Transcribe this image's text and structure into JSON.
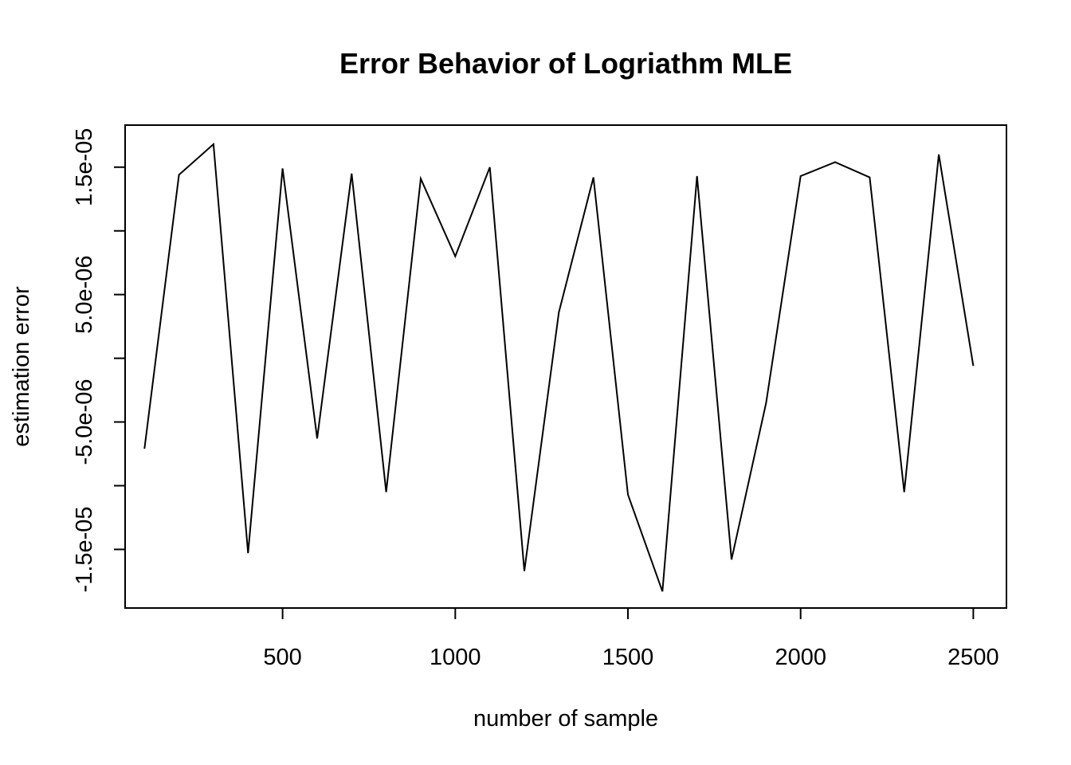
{
  "chart_data": {
    "type": "line",
    "title": "Error Behavior of Logriathm MLE",
    "xlabel": "number of sample",
    "ylabel": "estimation error",
    "xlim": [
      44,
      2596
    ],
    "ylim": [
      -1.96e-05,
      1.83e-05
    ],
    "x_ticks": [
      {
        "value": 500,
        "label": "500"
      },
      {
        "value": 1000,
        "label": "1000"
      },
      {
        "value": 1500,
        "label": "1500"
      },
      {
        "value": 2000,
        "label": "2000"
      },
      {
        "value": 2500,
        "label": "2500"
      }
    ],
    "y_ticks": [
      {
        "value": -1.5e-05,
        "label": "-1.5e-05"
      },
      {
        "value": -1e-05,
        "label": ""
      },
      {
        "value": -5e-06,
        "label": "-5.0e-06"
      },
      {
        "value": 0,
        "label": ""
      },
      {
        "value": 5e-06,
        "label": "5.0e-06"
      },
      {
        "value": 1e-05,
        "label": ""
      },
      {
        "value": 1.5e-05,
        "label": "1.5e-05"
      }
    ],
    "grid": false,
    "line_color": "#000000",
    "series": [
      {
        "x": [
          100,
          200,
          300,
          400,
          500,
          600,
          700,
          800,
          900,
          1000,
          1100,
          1200,
          1300,
          1400,
          1500,
          1600,
          1700,
          1800,
          1900,
          2000,
          2100,
          2200,
          2300,
          2400,
          2500
        ],
        "values": [
          -7.1e-06,
          1.44e-05,
          1.68e-05,
          -1.53e-05,
          1.49e-05,
          -6.3e-06,
          1.45e-05,
          -1.05e-05,
          1.41e-05,
          8e-06,
          1.5e-05,
          -1.67e-05,
          3.6e-06,
          1.42e-05,
          -1.07e-05,
          -1.83e-05,
          1.43e-05,
          -1.58e-05,
          -3.5e-06,
          1.43e-05,
          1.54e-05,
          1.42e-05,
          -1.05e-05,
          1.6e-05,
          -6e-07
        ]
      }
    ]
  }
}
